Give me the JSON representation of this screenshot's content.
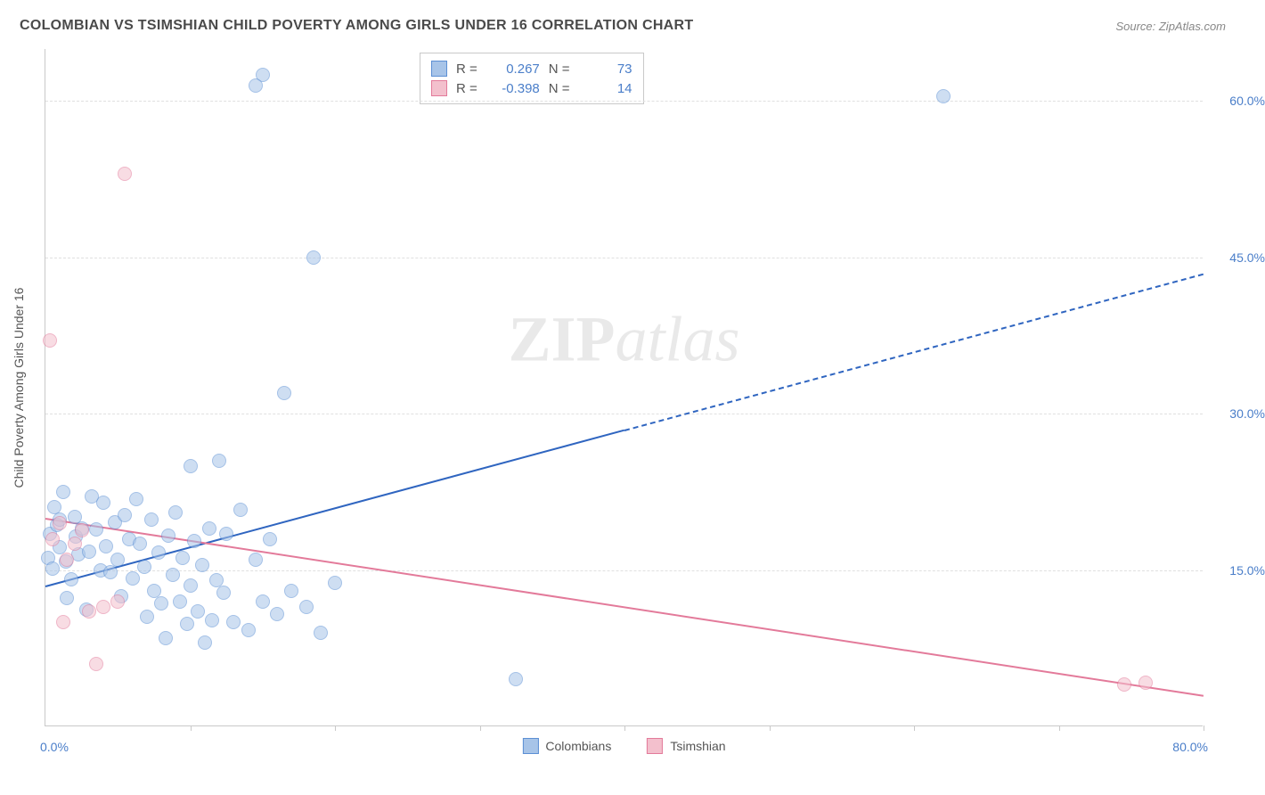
{
  "title": "COLOMBIAN VS TSIMSHIAN CHILD POVERTY AMONG GIRLS UNDER 16 CORRELATION CHART",
  "source": "Source: ZipAtlas.com",
  "y_axis_label": "Child Poverty Among Girls Under 16",
  "watermark_zip": "ZIP",
  "watermark_atlas": "atlas",
  "chart": {
    "type": "scatter",
    "xlim": [
      0,
      80
    ],
    "ylim": [
      0,
      65
    ],
    "x_ticks": [
      10,
      20,
      30,
      40,
      50,
      60,
      70,
      80
    ],
    "x_label_min": "0.0%",
    "x_label_max": "80.0%",
    "y_gridlines": [
      {
        "value": 15,
        "label": "15.0%"
      },
      {
        "value": 30,
        "label": "30.0%"
      },
      {
        "value": 45,
        "label": "45.0%"
      },
      {
        "value": 60,
        "label": "60.0%"
      }
    ],
    "background_color": "#ffffff",
    "grid_color": "#e0e0e0",
    "axis_color": "#c9c9c9",
    "label_color": "#4a7ec9",
    "title_color": "#4a4a4a",
    "point_radius": 8,
    "point_opacity": 0.55,
    "series": [
      {
        "name": "Colombians",
        "color_fill": "#a7c4e8",
        "color_stroke": "#5b8fd4",
        "R": "0.267",
        "N": "73",
        "trend": {
          "x1": 0,
          "y1": 13.5,
          "x2_solid": 40,
          "y2_solid": 28.5,
          "x2_dash": 80,
          "y2_dash": 43.5,
          "color": "#2f65c0",
          "width": 2.5
        },
        "points": [
          [
            0.2,
            16.2
          ],
          [
            0.3,
            18.5
          ],
          [
            0.5,
            15.1
          ],
          [
            0.6,
            21.0
          ],
          [
            0.8,
            19.3
          ],
          [
            1.0,
            17.2
          ],
          [
            1.2,
            22.5
          ],
          [
            1.4,
            15.8
          ],
          [
            1.5,
            12.3
          ],
          [
            1.8,
            14.1
          ],
          [
            2.0,
            20.1
          ],
          [
            2.1,
            18.2
          ],
          [
            2.3,
            16.5
          ],
          [
            2.5,
            19.0
          ],
          [
            2.8,
            11.2
          ],
          [
            3.0,
            16.8
          ],
          [
            3.2,
            22.1
          ],
          [
            3.5,
            18.9
          ],
          [
            3.8,
            15.0
          ],
          [
            4.0,
            21.5
          ],
          [
            4.2,
            17.3
          ],
          [
            4.5,
            14.8
          ],
          [
            4.8,
            19.6
          ],
          [
            5.0,
            16.0
          ],
          [
            5.2,
            12.5
          ],
          [
            5.5,
            20.3
          ],
          [
            5.8,
            18.0
          ],
          [
            6.0,
            14.2
          ],
          [
            6.3,
            21.8
          ],
          [
            6.5,
            17.5
          ],
          [
            6.8,
            15.3
          ],
          [
            7.0,
            10.5
          ],
          [
            7.3,
            19.8
          ],
          [
            7.5,
            13.0
          ],
          [
            7.8,
            16.7
          ],
          [
            8.0,
            11.8
          ],
          [
            8.3,
            8.5
          ],
          [
            8.5,
            18.3
          ],
          [
            8.8,
            14.5
          ],
          [
            9.0,
            20.5
          ],
          [
            9.3,
            12.0
          ],
          [
            9.5,
            16.2
          ],
          [
            9.8,
            9.8
          ],
          [
            10.0,
            13.5
          ],
          [
            10.3,
            17.8
          ],
          [
            10.5,
            11.0
          ],
          [
            10.8,
            15.5
          ],
          [
            11.0,
            8.0
          ],
          [
            11.3,
            19.0
          ],
          [
            11.5,
            10.2
          ],
          [
            11.8,
            14.0
          ],
          [
            12.0,
            25.5
          ],
          [
            12.3,
            12.8
          ],
          [
            12.5,
            18.5
          ],
          [
            13.0,
            10.0
          ],
          [
            13.5,
            20.8
          ],
          [
            14.0,
            9.2
          ],
          [
            14.5,
            16.0
          ],
          [
            15.0,
            12.0
          ],
          [
            15.5,
            18.0
          ],
          [
            16.0,
            10.8
          ],
          [
            17.0,
            13.0
          ],
          [
            18.0,
            11.5
          ],
          [
            19.0,
            9.0
          ],
          [
            20.0,
            13.8
          ],
          [
            10.0,
            25.0
          ],
          [
            16.5,
            32.0
          ],
          [
            18.5,
            45.0
          ],
          [
            15.0,
            62.5
          ],
          [
            62.0,
            60.5
          ],
          [
            32.5,
            4.5
          ],
          [
            14.5,
            61.5
          ],
          [
            1.0,
            19.8
          ]
        ]
      },
      {
        "name": "Tsimshian",
        "color_fill": "#f3c0cd",
        "color_stroke": "#e37a9a",
        "R": "-0.398",
        "N": "14",
        "trend": {
          "x1": 0,
          "y1": 20.0,
          "x2_solid": 80,
          "y2_solid": 3.0,
          "x2_dash": 80,
          "y2_dash": 3.0,
          "color": "#e37a9a",
          "width": 2.5
        },
        "points": [
          [
            0.3,
            37.0
          ],
          [
            0.5,
            18.0
          ],
          [
            1.0,
            19.5
          ],
          [
            1.5,
            16.0
          ],
          [
            2.0,
            17.5
          ],
          [
            2.5,
            18.8
          ],
          [
            3.0,
            11.0
          ],
          [
            3.5,
            6.0
          ],
          [
            4.0,
            11.5
          ],
          [
            5.0,
            12.0
          ],
          [
            5.5,
            53.0
          ],
          [
            74.5,
            4.0
          ],
          [
            76.0,
            4.2
          ],
          [
            1.2,
            10.0
          ]
        ]
      }
    ],
    "legend_series_labels": [
      "Colombians",
      "Tsimshian"
    ]
  }
}
